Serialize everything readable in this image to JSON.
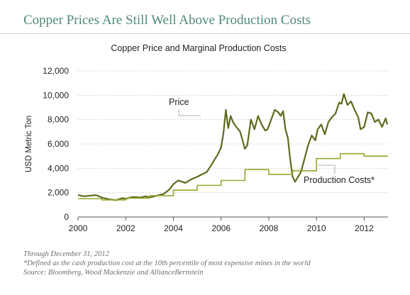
{
  "headline": "Copper Prices Are Still Well Above Production Costs",
  "footnotes": [
    "Through December 31, 2012",
    "*Defined as the cash production cost at the 10th percentile of most expensive mines in the world",
    "Source: Bloomberg, Wood Mackenzie and AllianceBernstein"
  ],
  "colors": {
    "price": "#5d6b1d",
    "production_costs": "#8eab2e",
    "headline": "#4f8a74"
  },
  "chart_data": {
    "type": "line",
    "title": "Copper Price and Marginal Production Costs",
    "xlabel": "",
    "ylabel": "USD Metric Ton",
    "xlim": [
      2000,
      2013
    ],
    "ylim": [
      0,
      12000
    ],
    "x_ticks": [
      2000,
      2002,
      2004,
      2006,
      2008,
      2010,
      2012
    ],
    "y_ticks": [
      0,
      2000,
      4000,
      6000,
      8000,
      10000,
      12000
    ],
    "y_tick_labels": [
      "0",
      "2,000",
      "4,000",
      "6,000",
      "8,000",
      "10,000",
      "12,000"
    ],
    "grid": true,
    "series": [
      {
        "name": "Price",
        "style": "line",
        "x": [
          2000.0,
          2000.25,
          2000.5,
          2000.75,
          2001.0,
          2001.3,
          2001.6,
          2001.85,
          2002.0,
          2002.3,
          2002.6,
          2002.85,
          2003.0,
          2003.3,
          2003.6,
          2003.85,
          2004.0,
          2004.2,
          2004.5,
          2004.75,
          2005.0,
          2005.2,
          2005.4,
          2005.6,
          2005.75,
          2005.85,
          2006.0,
          2006.1,
          2006.2,
          2006.3,
          2006.4,
          2006.5,
          2006.6,
          2006.8,
          2007.0,
          2007.1,
          2007.25,
          2007.4,
          2007.55,
          2007.7,
          2007.85,
          2007.95,
          2008.1,
          2008.25,
          2008.4,
          2008.5,
          2008.6,
          2008.7,
          2008.8,
          2008.9,
          2009.0,
          2009.1,
          2009.2,
          2009.35,
          2009.5,
          2009.65,
          2009.8,
          2009.95,
          2010.05,
          2010.2,
          2010.35,
          2010.5,
          2010.65,
          2010.8,
          2010.95,
          2011.05,
          2011.15,
          2011.3,
          2011.45,
          2011.6,
          2011.75,
          2011.85,
          2012.0,
          2012.15,
          2012.3,
          2012.45,
          2012.6,
          2012.75,
          2012.9,
          2012.97
        ],
        "values": [
          1800,
          1700,
          1750,
          1800,
          1600,
          1450,
          1380,
          1550,
          1500,
          1650,
          1600,
          1700,
          1600,
          1750,
          1900,
          2300,
          2700,
          3000,
          2800,
          3100,
          3300,
          3500,
          3700,
          4300,
          4800,
          5100,
          5700,
          6900,
          8800,
          7300,
          8300,
          7800,
          7500,
          7000,
          5600,
          5900,
          8000,
          7200,
          8300,
          7600,
          7100,
          7200,
          8000,
          8800,
          8600,
          8300,
          8700,
          7200,
          6500,
          4700,
          3300,
          2900,
          3200,
          3700,
          4800,
          5900,
          6700,
          6300,
          7200,
          7600,
          6800,
          7800,
          8200,
          8500,
          9400,
          9300,
          10100,
          9200,
          9500,
          8800,
          8200,
          7200,
          7400,
          8600,
          8500,
          7800,
          8000,
          7400,
          8100,
          7600
        ]
      },
      {
        "name": "Production Costs*",
        "style": "step",
        "x": [
          2000,
          2001,
          2002,
          2003,
          2004,
          2005,
          2006,
          2007,
          2008,
          2009,
          2010,
          2011,
          2012,
          2013
        ],
        "values": [
          1500,
          1400,
          1550,
          1750,
          2200,
          2600,
          3000,
          3900,
          3500,
          3800,
          4800,
          5200,
          5000,
          5000
        ]
      }
    ],
    "annotations": [
      {
        "text": "Price",
        "x": 2005.5,
        "y": 8300
      },
      {
        "text": "Production Costs*",
        "x": 2010.1,
        "y": 4200
      }
    ]
  }
}
